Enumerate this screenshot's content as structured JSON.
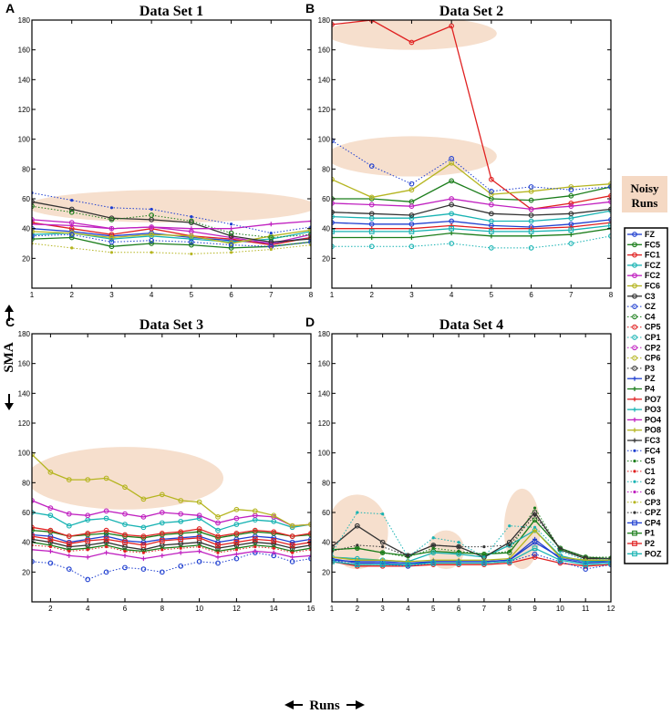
{
  "figure": {
    "y_axis_label": "SMA",
    "x_axis_label": "Runs",
    "noisy_label_line1": "Noisy",
    "noisy_label_line2": "Runs",
    "noisy_color": "#f5d9c4"
  },
  "legend": [
    {
      "name": "FZ",
      "color": "#1f3fd0",
      "marker": "o",
      "line": "solid"
    },
    {
      "name": "FC5",
      "color": "#1b7d1b",
      "marker": "o",
      "line": "solid"
    },
    {
      "name": "FC1",
      "color": "#e02020",
      "marker": "o",
      "line": "solid"
    },
    {
      "name": "FCZ",
      "color": "#18b3b3",
      "marker": "o",
      "line": "solid"
    },
    {
      "name": "FC2",
      "color": "#c020c0",
      "marker": "o",
      "line": "solid"
    },
    {
      "name": "FC6",
      "color": "#b5b520",
      "marker": "o",
      "line": "solid"
    },
    {
      "name": "C3",
      "color": "#333333",
      "marker": "o",
      "line": "solid"
    },
    {
      "name": "CZ",
      "color": "#1f3fd0",
      "marker": "o",
      "line": "dotted"
    },
    {
      "name": "C4",
      "color": "#1b7d1b",
      "marker": "o",
      "line": "dotted"
    },
    {
      "name": "CP5",
      "color": "#e02020",
      "marker": "o",
      "line": "dotted"
    },
    {
      "name": "CP1",
      "color": "#18b3b3",
      "marker": "o",
      "line": "dotted"
    },
    {
      "name": "CP2",
      "color": "#c020c0",
      "marker": "o",
      "line": "dotted"
    },
    {
      "name": "CP6",
      "color": "#b5b520",
      "marker": "o",
      "line": "dotted"
    },
    {
      "name": "P3",
      "color": "#333333",
      "marker": "o",
      "line": "dotted"
    },
    {
      "name": "PZ",
      "color": "#1f3fd0",
      "marker": "plus",
      "line": "solid"
    },
    {
      "name": "P4",
      "color": "#1b7d1b",
      "marker": "plus",
      "line": "solid"
    },
    {
      "name": "PO7",
      "color": "#e02020",
      "marker": "plus",
      "line": "solid"
    },
    {
      "name": "PO3",
      "color": "#18b3b3",
      "marker": "plus",
      "line": "solid"
    },
    {
      "name": "PO4",
      "color": "#c020c0",
      "marker": "plus",
      "line": "solid"
    },
    {
      "name": "PO8",
      "color": "#b5b520",
      "marker": "plus",
      "line": "solid"
    },
    {
      "name": "FC3",
      "color": "#333333",
      "marker": "plus",
      "line": "solid"
    },
    {
      "name": "FC4",
      "color": "#1f3fd0",
      "marker": "dot",
      "line": "dotted"
    },
    {
      "name": "C5",
      "color": "#1b7d1b",
      "marker": "dot",
      "line": "dotted"
    },
    {
      "name": "C1",
      "color": "#e02020",
      "marker": "dot",
      "line": "dotted"
    },
    {
      "name": "C2",
      "color": "#18b3b3",
      "marker": "dot",
      "line": "dotted"
    },
    {
      "name": "C6",
      "color": "#c020c0",
      "marker": "dot",
      "line": "dotted"
    },
    {
      "name": "CP3",
      "color": "#b5b520",
      "marker": "dot",
      "line": "dotted"
    },
    {
      "name": "CPZ",
      "color": "#333333",
      "marker": "dot",
      "line": "dotted"
    },
    {
      "name": "CP4",
      "color": "#1f3fd0",
      "marker": "square",
      "line": "solid"
    },
    {
      "name": "P1",
      "color": "#1b7d1b",
      "marker": "square",
      "line": "solid"
    },
    {
      "name": "P2",
      "color": "#e02020",
      "marker": "square",
      "line": "solid"
    },
    {
      "name": "POZ",
      "color": "#18b3b3",
      "marker": "square",
      "line": "solid"
    }
  ],
  "chart_data": [
    {
      "type": "line",
      "letter": "A",
      "title": "Data Set 1",
      "xlim": [
        1,
        8
      ],
      "ylim": [
        0,
        180
      ],
      "xticks": [
        1,
        2,
        3,
        4,
        5,
        6,
        7,
        8
      ],
      "yticks": [
        20,
        40,
        60,
        80,
        100,
        120,
        140,
        160,
        180
      ],
      "noisy_regions": [
        {
          "x": [
            1,
            8
          ],
          "y": [
            44,
            66
          ]
        }
      ],
      "series": [
        {
          "name": "FZ",
          "y": [
            40,
            38,
            35,
            37,
            34,
            32,
            30,
            34
          ]
        },
        {
          "name": "FC5",
          "y": [
            33,
            34,
            28,
            30,
            29,
            27,
            28,
            31
          ]
        },
        {
          "name": "FC1",
          "y": [
            44,
            40,
            36,
            40,
            35,
            33,
            29,
            34
          ]
        },
        {
          "name": "FCZ",
          "y": [
            36,
            37,
            33,
            35,
            33,
            31,
            33,
            38
          ]
        },
        {
          "name": "FC2",
          "y": [
            46,
            44,
            40,
            41,
            38,
            34,
            30,
            36
          ]
        },
        {
          "name": "FC6",
          "y": [
            38,
            37,
            34,
            36,
            35,
            30,
            35,
            39
          ]
        },
        {
          "name": "C3",
          "y": [
            58,
            53,
            47,
            46,
            44,
            35,
            31,
            33
          ]
        },
        {
          "name": "CZ",
          "y": [
            35,
            36,
            31,
            32,
            31,
            29,
            28,
            31
          ]
        },
        {
          "name": "C4",
          "y": [
            55,
            51,
            46,
            49,
            45,
            37,
            34,
            36
          ]
        },
        {
          "name": "PO4",
          "y": [
            43,
            42,
            40,
            41,
            40,
            40,
            43,
            45
          ]
        },
        {
          "name": "FC4",
          "y": [
            64,
            59,
            54,
            53,
            48,
            43,
            37,
            41
          ]
        },
        {
          "name": "CP3",
          "y": [
            30,
            27,
            24,
            24,
            23,
            24,
            26,
            29
          ]
        }
      ]
    },
    {
      "type": "line",
      "letter": "B",
      "title": "Data Set 2",
      "xlim": [
        1,
        8
      ],
      "ylim": [
        0,
        180
      ],
      "xticks": [
        1,
        2,
        3,
        4,
        5,
        6,
        7,
        8
      ],
      "yticks": [
        20,
        40,
        60,
        80,
        100,
        120,
        140,
        160,
        180
      ],
      "noisy_regions": [
        {
          "x": [
            1,
            5
          ],
          "y": [
            160,
            182
          ]
        },
        {
          "x": [
            1,
            5
          ],
          "y": [
            75,
            102
          ]
        }
      ],
      "series": [
        {
          "name": "FZ",
          "y": [
            44,
            43,
            43,
            45,
            42,
            41,
            43,
            46
          ]
        },
        {
          "name": "FC5",
          "y": [
            60,
            60,
            58,
            72,
            60,
            59,
            62,
            68
          ]
        },
        {
          "name": "FC1",
          "y": [
            177,
            180,
            165,
            176,
            73,
            53,
            57,
            62
          ]
        },
        {
          "name": "FCZ",
          "y": [
            48,
            47,
            47,
            50,
            45,
            45,
            47,
            52
          ]
        },
        {
          "name": "FC2",
          "y": [
            57,
            56,
            55,
            60,
            56,
            53,
            55,
            58
          ]
        },
        {
          "name": "FC6",
          "y": [
            73,
            61,
            66,
            84,
            63,
            65,
            68,
            70
          ]
        },
        {
          "name": "C3",
          "y": [
            51,
            50,
            49,
            56,
            50,
            49,
            50,
            53
          ]
        },
        {
          "name": "CZ",
          "y": [
            99,
            82,
            70,
            87,
            65,
            68,
            66,
            68
          ]
        },
        {
          "name": "CP1",
          "y": [
            28,
            28,
            28,
            30,
            27,
            27,
            30,
            35
          ]
        },
        {
          "name": "P4",
          "y": [
            34,
            34,
            34,
            37,
            35,
            35,
            36,
            40
          ]
        },
        {
          "name": "PO7",
          "y": [
            40,
            40,
            40,
            42,
            40,
            40,
            41,
            44
          ]
        },
        {
          "name": "POZ",
          "y": [
            38,
            38,
            38,
            40,
            38,
            38,
            39,
            42
          ]
        }
      ]
    },
    {
      "type": "line",
      "letter": "C",
      "title": "Data Set 3",
      "xlim": [
        1,
        16
      ],
      "ylim": [
        0,
        180
      ],
      "xticks": [
        2,
        4,
        6,
        8,
        10,
        12,
        14,
        16
      ],
      "yticks": [
        20,
        40,
        60,
        80,
        100,
        120,
        140,
        160,
        180
      ],
      "noisy_regions": [
        {
          "x": [
            1,
            11
          ],
          "y": [
            62,
            104
          ]
        }
      ],
      "series": [
        {
          "name": "FZ",
          "y": [
            45,
            44,
            40,
            42,
            44,
            41,
            40,
            42,
            43,
            44,
            40,
            42,
            44,
            43,
            40,
            42
          ]
        },
        {
          "name": "FC5",
          "y": [
            48,
            47,
            44,
            45,
            46,
            44,
            43,
            45,
            46,
            47,
            43,
            45,
            47,
            46,
            44,
            45
          ]
        },
        {
          "name": "FC1",
          "y": [
            50,
            48,
            44,
            46,
            48,
            45,
            44,
            46,
            47,
            49,
            44,
            46,
            48,
            47,
            44,
            46
          ]
        },
        {
          "name": "FCZ",
          "y": [
            60,
            58,
            51,
            55,
            56,
            52,
            50,
            53,
            54,
            56,
            48,
            52,
            55,
            54,
            50,
            52
          ]
        },
        {
          "name": "FC2",
          "y": [
            68,
            63,
            59,
            58,
            61,
            59,
            57,
            60,
            59,
            58,
            53,
            56,
            58,
            57,
            51,
            52
          ]
        },
        {
          "name": "FC6",
          "y": [
            99,
            87,
            82,
            82,
            83,
            77,
            69,
            72,
            68,
            67,
            57,
            62,
            61,
            58,
            51,
            52
          ]
        },
        {
          "name": "C3",
          "y": [
            42,
            40,
            37,
            38,
            40,
            37,
            35,
            38,
            39,
            40,
            36,
            38,
            40,
            39,
            36,
            38
          ]
        },
        {
          "name": "CZ",
          "y": [
            27,
            26,
            22,
            15,
            20,
            23,
            22,
            20,
            24,
            27,
            26,
            29,
            33,
            31,
            27,
            29
          ]
        },
        {
          "name": "P4",
          "y": [
            40,
            38,
            35,
            36,
            38,
            35,
            34,
            36,
            37,
            38,
            34,
            36,
            38,
            37,
            34,
            36
          ]
        },
        {
          "name": "PO4",
          "y": [
            35,
            34,
            31,
            30,
            33,
            31,
            29,
            31,
            33,
            34,
            30,
            32,
            34,
            33,
            30,
            31
          ]
        },
        {
          "name": "C1",
          "y": [
            38,
            37,
            34,
            35,
            37,
            34,
            33,
            35,
            36,
            37,
            33,
            35,
            37,
            36,
            33,
            35
          ]
        },
        {
          "name": "P2",
          "y": [
            44,
            42,
            39,
            41,
            42,
            40,
            38,
            41,
            42,
            43,
            38,
            40,
            42,
            41,
            38,
            40
          ]
        }
      ]
    },
    {
      "type": "line",
      "letter": "D",
      "title": "Data Set 4",
      "xlim": [
        1,
        12
      ],
      "ylim": [
        0,
        180
      ],
      "xticks": [
        1,
        2,
        3,
        4,
        5,
        6,
        7,
        8,
        9,
        10,
        11,
        12
      ],
      "yticks": [
        20,
        40,
        60,
        80,
        100,
        120,
        140,
        160,
        180
      ],
      "noisy_regions": [
        {
          "x": [
            1,
            3
          ],
          "y": [
            22,
            72
          ]
        },
        {
          "x": [
            5,
            6
          ],
          "y": [
            22,
            48
          ]
        },
        {
          "x": [
            8,
            9
          ],
          "y": [
            22,
            76
          ]
        }
      ],
      "series": [
        {
          "name": "FZ",
          "y": [
            28,
            27,
            27,
            26,
            27,
            27,
            27,
            28,
            40,
            30,
            27,
            28
          ]
        },
        {
          "name": "FC5",
          "y": [
            35,
            36,
            33,
            31,
            34,
            33,
            32,
            33,
            55,
            36,
            30,
            29
          ]
        },
        {
          "name": "FC1",
          "y": [
            27,
            24,
            24,
            24,
            25,
            25,
            25,
            26,
            30,
            26,
            24,
            25
          ]
        },
        {
          "name": "FCZ",
          "y": [
            30,
            29,
            28,
            27,
            33,
            32,
            30,
            38,
            48,
            31,
            27,
            27
          ]
        },
        {
          "name": "C3",
          "y": [
            37,
            51,
            40,
            31,
            38,
            37,
            30,
            40,
            60,
            35,
            29,
            29
          ]
        },
        {
          "name": "C2",
          "y": [
            33,
            60,
            59,
            30,
            43,
            40,
            30,
            51,
            50,
            34,
            28,
            29
          ]
        },
        {
          "name": "C5",
          "y": [
            35,
            36,
            33,
            30,
            36,
            34,
            32,
            34,
            63,
            35,
            30,
            30
          ]
        },
        {
          "name": "CPZ",
          "y": [
            34,
            38,
            37,
            31,
            38,
            37,
            37,
            38,
            58,
            36,
            30,
            29
          ]
        },
        {
          "name": "PO8",
          "y": [
            30,
            28,
            28,
            27,
            28,
            28,
            28,
            29,
            48,
            30,
            28,
            28
          ]
        },
        {
          "name": "CZ",
          "y": [
            28,
            25,
            25,
            24,
            26,
            26,
            26,
            27,
            32,
            27,
            22,
            25
          ]
        },
        {
          "name": "PZ",
          "y": [
            29,
            26,
            26,
            25,
            27,
            27,
            27,
            28,
            42,
            29,
            26,
            27
          ]
        },
        {
          "name": "POZ",
          "y": [
            27,
            25,
            25,
            25,
            26,
            26,
            26,
            27,
            36,
            28,
            25,
            26
          ]
        }
      ]
    }
  ]
}
